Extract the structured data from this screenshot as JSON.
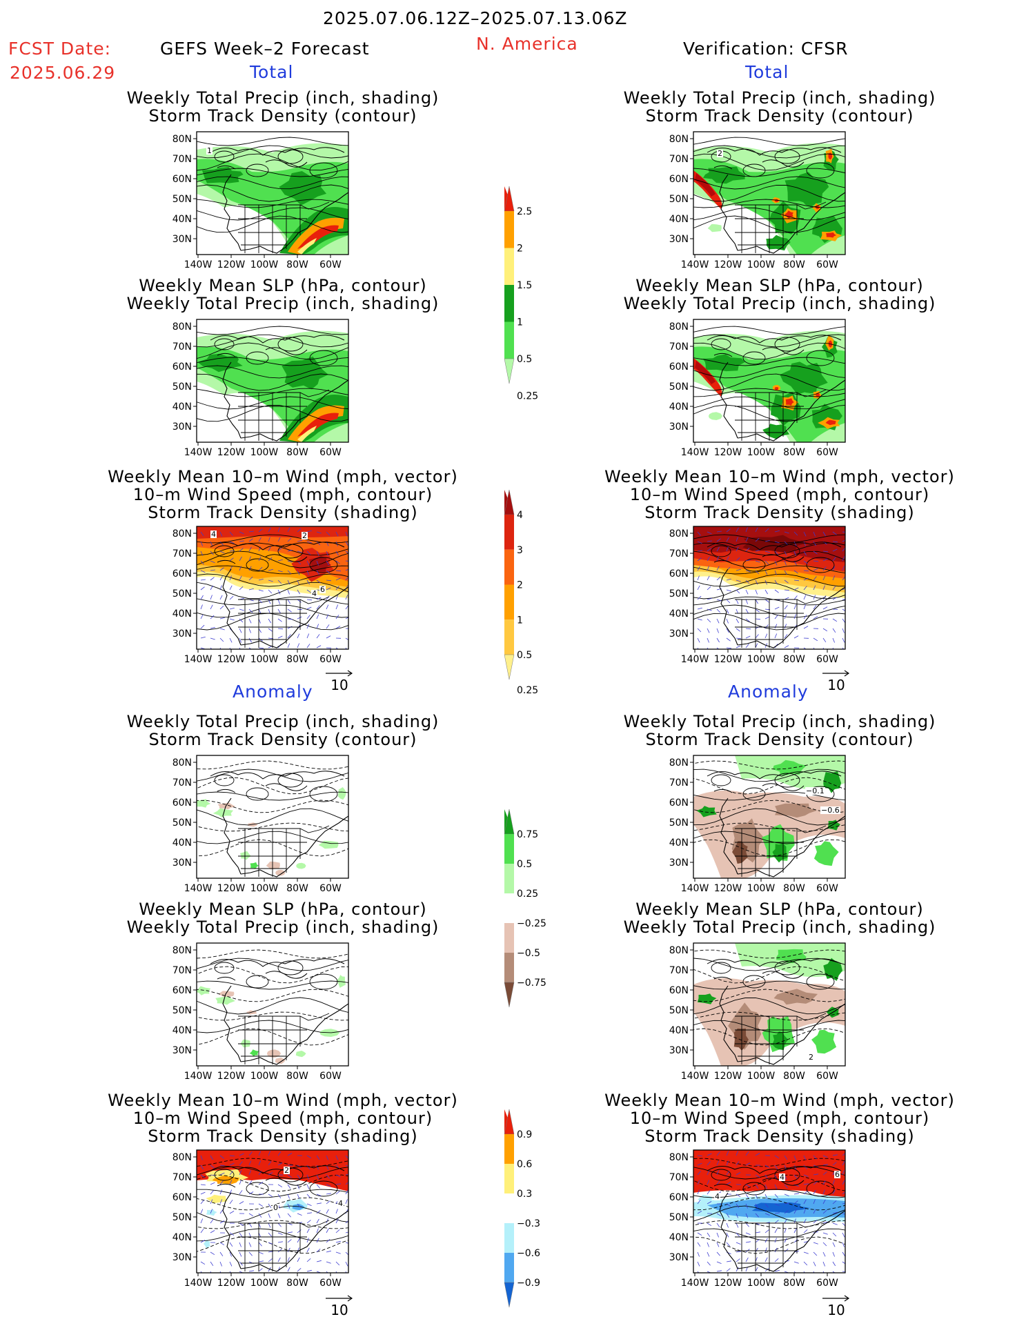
{
  "header": {
    "date_range": "2025.07.06.12Z–2025.07.13.06Z",
    "fcst_label": "FCST Date:",
    "fcst_date": "2025.06.29",
    "left_title": "GEFS Week–2 Forecast",
    "region": "N. America",
    "right_title": "Verification: CFSR"
  },
  "sections": {
    "total": "Total",
    "anomaly": "Anomaly"
  },
  "panel_titles": {
    "precip_storm": [
      "Weekly Total Precip (inch, shading)",
      "Storm Track Density (contour)"
    ],
    "slp_precip": [
      "Weekly Mean SLP (hPa, contour)",
      "Weekly Total Precip (inch, shading)"
    ],
    "wind_storm": [
      "Weekly Mean 10–m Wind (mph, vector)",
      "10–m Wind Speed (mph, contour)",
      "Storm Track Density (shading)"
    ]
  },
  "axes": {
    "lat_labels": [
      "80N",
      "70N",
      "60N",
      "50N",
      "40N",
      "30N"
    ],
    "lon_labels": [
      "140W",
      "120W",
      "100W",
      "80W",
      "60W"
    ]
  },
  "vector_scale": "10",
  "colorbars": {
    "precip_total": {
      "labels": [
        "2.5",
        "2",
        "1.5",
        "1",
        "0.5",
        "0.25"
      ],
      "colors": [
        "#e8200c",
        "#ffa000",
        "#fff07a",
        "#16a01e",
        "#50e050",
        "#b4f8a8"
      ]
    },
    "storm_total": {
      "labels": [
        "4",
        "3",
        "2",
        "1",
        "0.5",
        "0.25"
      ],
      "colors": [
        "#a50f0f",
        "#dd2510",
        "#fa6410",
        "#ffa000",
        "#ffc840",
        "#fff08c"
      ]
    },
    "precip_anom": {
      "labels": [
        "0.75",
        "0.5",
        "0.25",
        "−0.25",
        "−0.5",
        "−0.75"
      ],
      "colors": [
        "#16a01e",
        "#50e050",
        "#b4f8a8",
        "#ffffff",
        "#e6c3b4",
        "#b48c78",
        "#7a4b37"
      ]
    },
    "storm_anom": {
      "labels": [
        "0.9",
        "0.6",
        "0.3",
        "−0.3",
        "−0.6",
        "−0.9"
      ],
      "colors": [
        "#e8200c",
        "#ffa000",
        "#fff07a",
        "#ffffff",
        "#b4f0fa",
        "#50a8f0",
        "#1464d2"
      ]
    }
  },
  "contour_labels": {
    "l_total_1": "1",
    "r_total_1": "2",
    "l_wind_total": [
      "4",
      "2",
      "4",
      "6"
    ],
    "l_wind_anom": [
      "2",
      "4",
      "0"
    ],
    "r_anom_1": [
      "−0.1",
      "−0.6"
    ],
    "r_anom_2": "2",
    "r_wind_anom": [
      "4",
      "4",
      "6"
    ]
  }
}
